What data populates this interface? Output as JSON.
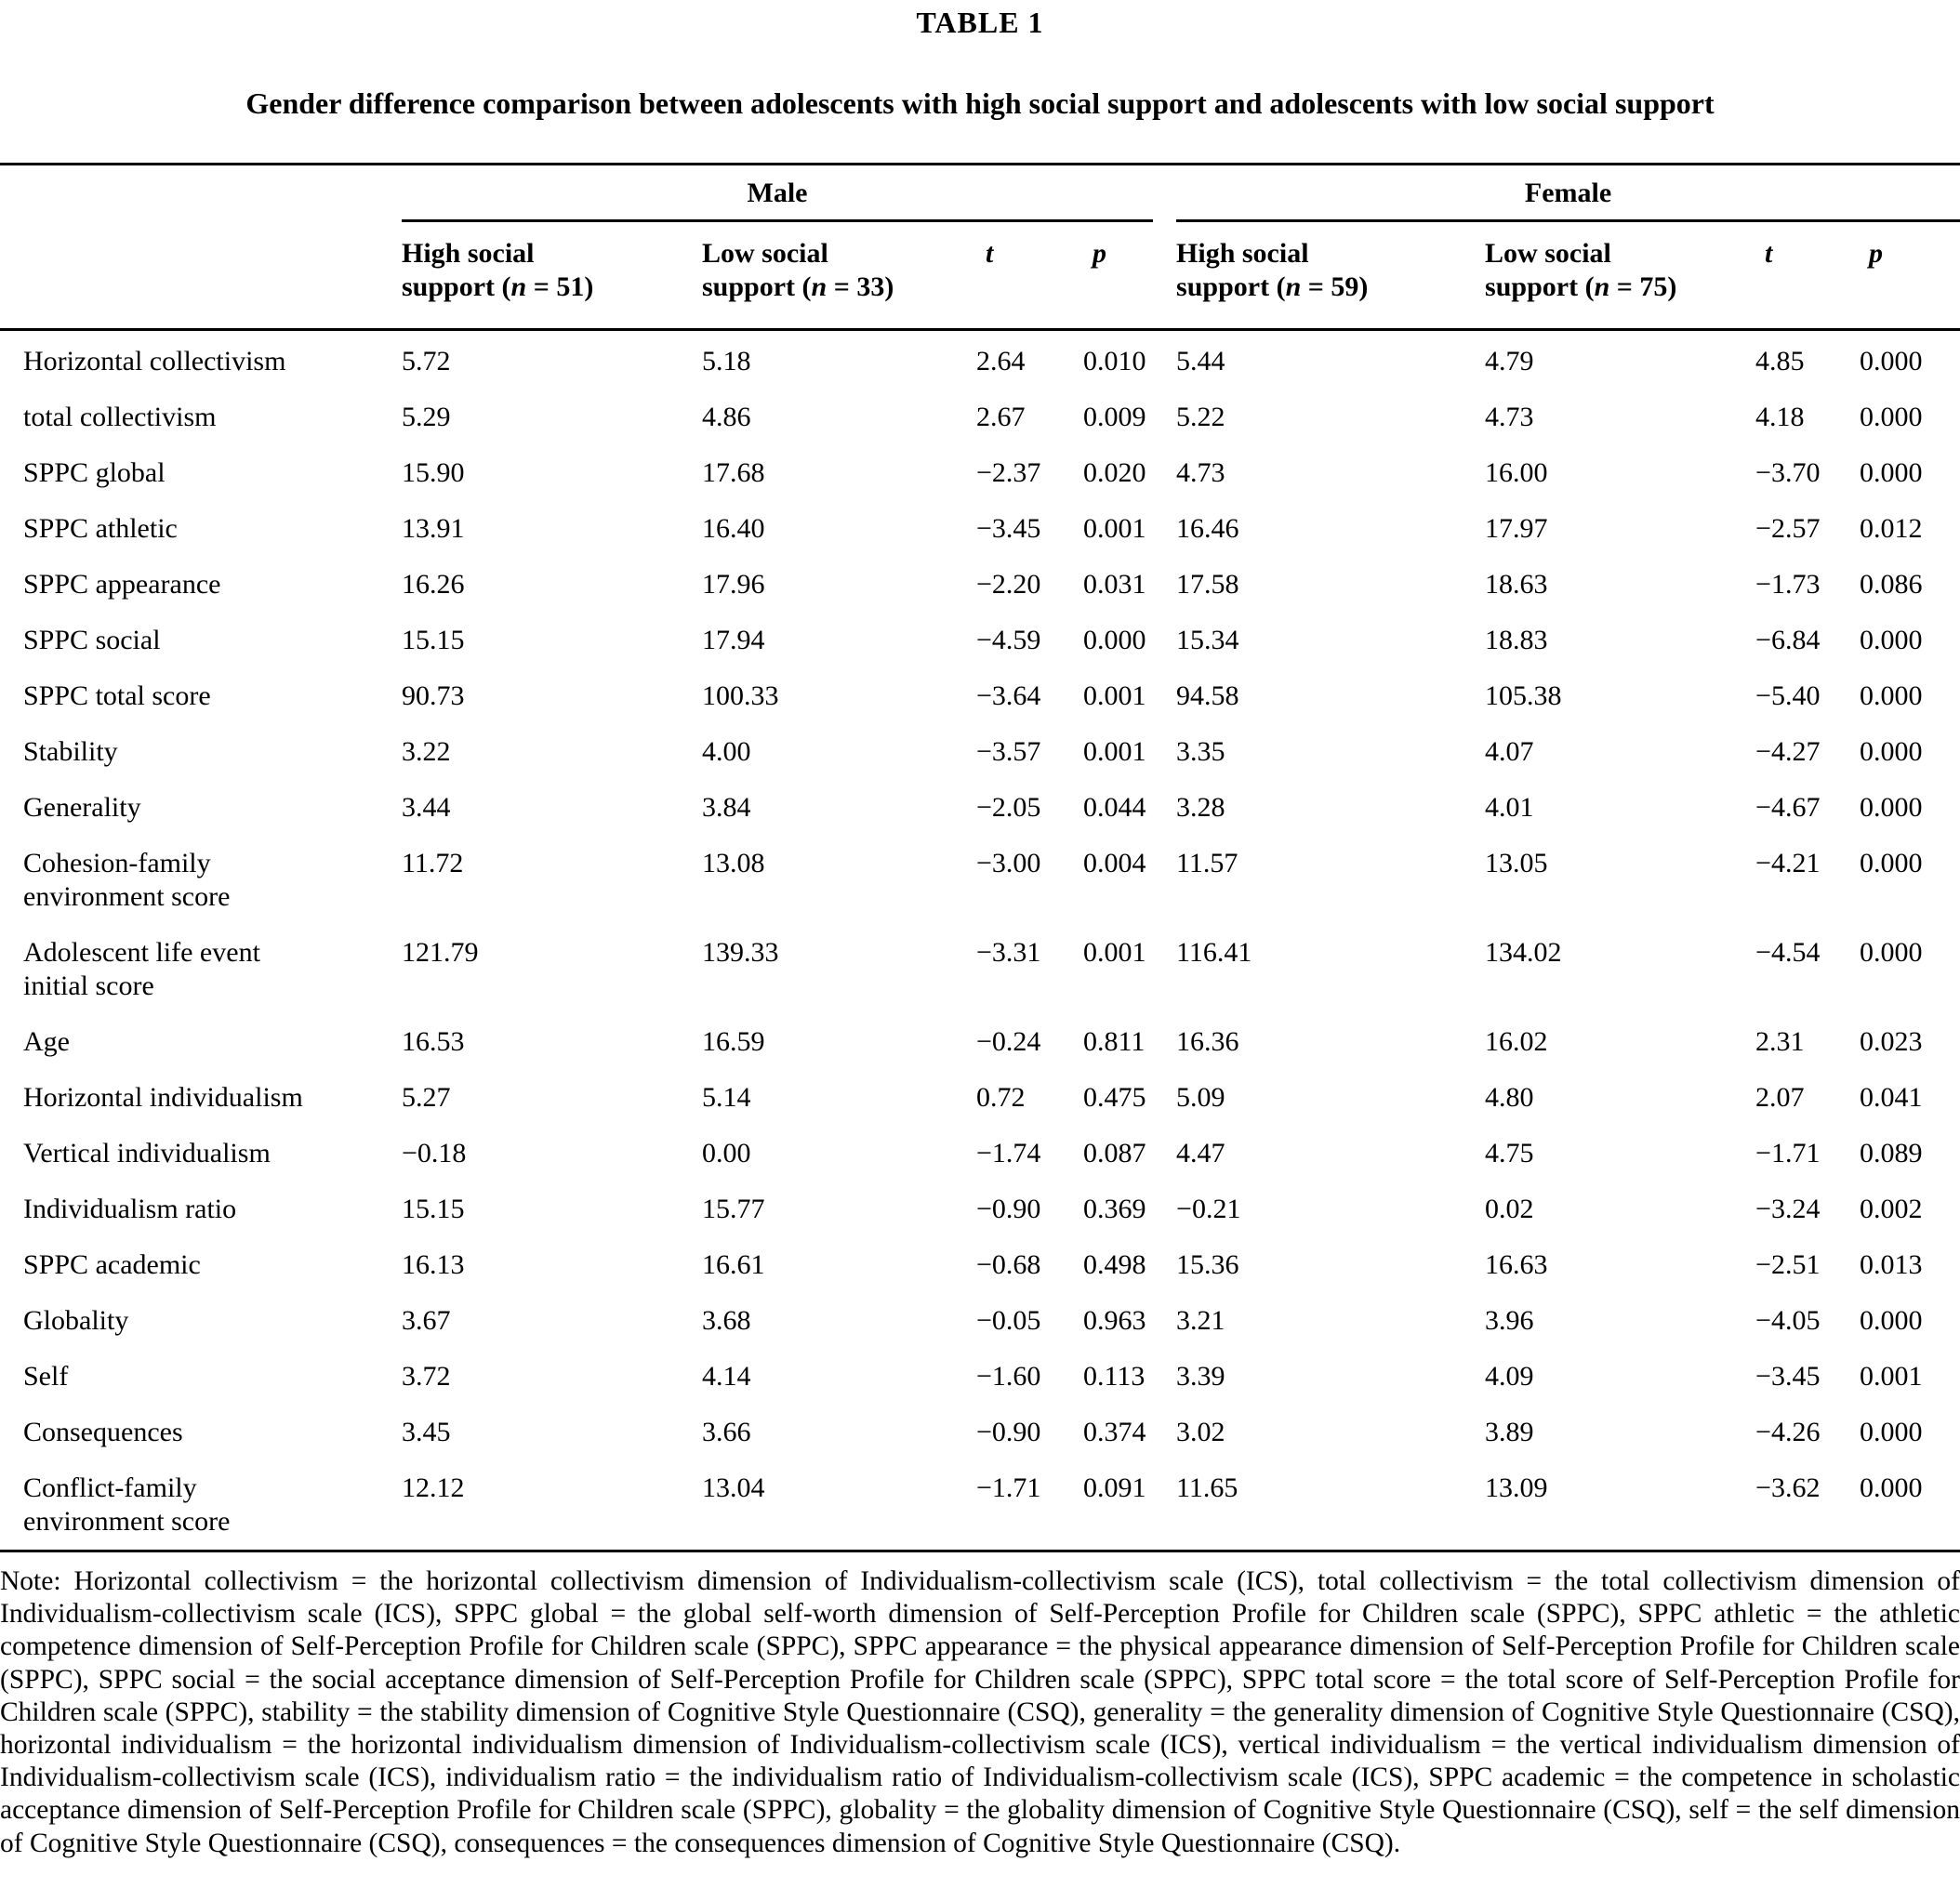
{
  "table_label": "TABLE 1",
  "title": "Gender difference comparison between adolescents with high social support and adolescents with low social support",
  "groups": [
    {
      "label": "Male"
    },
    {
      "label": "Female"
    }
  ],
  "columns": {
    "male_high": {
      "line1": "High social",
      "line2_prefix": "support (",
      "n": "n",
      "line2_suffix": " = 51)"
    },
    "male_low": {
      "line1": "Low social",
      "line2_prefix": "support (",
      "n": "n",
      "line2_suffix": " = 33)"
    },
    "male_t": "t",
    "male_p": "p",
    "female_high": {
      "line1": "High social",
      "line2_prefix": "support (",
      "n": "n",
      "line2_suffix": " = 59)"
    },
    "female_low": {
      "line1": "Low social",
      "line2_prefix": "support (",
      "n": "n",
      "line2_suffix": " = 75)"
    },
    "female_t": "t",
    "female_p": "p"
  },
  "rows": [
    {
      "label": "Horizontal collectivism",
      "values": [
        "5.72",
        "5.18",
        "2.64",
        "0.010",
        "5.44",
        "4.79",
        "4.85",
        "0.000"
      ]
    },
    {
      "label": "total collectivism",
      "values": [
        "5.29",
        "4.86",
        "2.67",
        "0.009",
        "5.22",
        "4.73",
        "4.18",
        "0.000"
      ]
    },
    {
      "label": "SPPC global",
      "values": [
        "15.90",
        "17.68",
        "−2.37",
        "0.020",
        "4.73",
        "16.00",
        "−3.70",
        "0.000"
      ]
    },
    {
      "label": "SPPC athletic",
      "values": [
        "13.91",
        "16.40",
        "−3.45",
        "0.001",
        "16.46",
        "17.97",
        "−2.57",
        "0.012"
      ]
    },
    {
      "label": "SPPC appearance",
      "values": [
        "16.26",
        "17.96",
        "−2.20",
        "0.031",
        "17.58",
        "18.63",
        "−1.73",
        "0.086"
      ]
    },
    {
      "label": "SPPC social",
      "values": [
        "15.15",
        "17.94",
        "−4.59",
        "0.000",
        "15.34",
        "18.83",
        "−6.84",
        "0.000"
      ]
    },
    {
      "label": "SPPC total score",
      "values": [
        "90.73",
        "100.33",
        "−3.64",
        "0.001",
        "94.58",
        "105.38",
        "−5.40",
        "0.000"
      ]
    },
    {
      "label": "Stability",
      "values": [
        "3.22",
        "4.00",
        "−3.57",
        "0.001",
        "3.35",
        "4.07",
        "−4.27",
        "0.000"
      ]
    },
    {
      "label": "Generality",
      "values": [
        "3.44",
        "3.84",
        "−2.05",
        "0.044",
        "3.28",
        "4.01",
        "−4.67",
        "0.000"
      ]
    },
    {
      "label": "Cohesion-family\nenvironment score",
      "values": [
        "11.72",
        "13.08",
        "−3.00",
        "0.004",
        "11.57",
        "13.05",
        "−4.21",
        "0.000"
      ]
    },
    {
      "label": "Adolescent life event\ninitial score",
      "values": [
        "121.79",
        "139.33",
        "−3.31",
        "0.001",
        "116.41",
        "134.02",
        "−4.54",
        "0.000"
      ]
    },
    {
      "label": "Age",
      "values": [
        "16.53",
        "16.59",
        "−0.24",
        "0.811",
        "16.36",
        "16.02",
        "2.31",
        "0.023"
      ]
    },
    {
      "label": "Horizontal individualism",
      "values": [
        "5.27",
        "5.14",
        "0.72",
        "0.475",
        "5.09",
        "4.80",
        "2.07",
        "0.041"
      ]
    },
    {
      "label": "Vertical individualism",
      "values": [
        "−0.18",
        "0.00",
        "−1.74",
        "0.087",
        "4.47",
        "4.75",
        "−1.71",
        "0.089"
      ]
    },
    {
      "label": "Individualism ratio",
      "values": [
        "15.15",
        "15.77",
        "−0.90",
        "0.369",
        "−0.21",
        "0.02",
        "−3.24",
        "0.002"
      ]
    },
    {
      "label": "SPPC academic",
      "values": [
        "16.13",
        "16.61",
        "−0.68",
        "0.498",
        "15.36",
        "16.63",
        "−2.51",
        "0.013"
      ]
    },
    {
      "label": "Globality",
      "values": [
        "3.67",
        "3.68",
        "−0.05",
        "0.963",
        "3.21",
        "3.96",
        "−4.05",
        "0.000"
      ]
    },
    {
      "label": "Self",
      "values": [
        "3.72",
        "4.14",
        "−1.60",
        "0.113",
        "3.39",
        "4.09",
        "−3.45",
        "0.001"
      ]
    },
    {
      "label": "Consequences",
      "values": [
        "3.45",
        "3.66",
        "−0.90",
        "0.374",
        "3.02",
        "3.89",
        "−4.26",
        "0.000"
      ]
    },
    {
      "label": "Conflict-family\nenvironment score",
      "values": [
        "12.12",
        "13.04",
        "−1.71",
        "0.091",
        "11.65",
        "13.09",
        "−3.62",
        "0.000"
      ]
    }
  ],
  "note": "Note: Horizontal collectivism = the horizontal collectivism dimension of Individualism-collectivism scale (ICS), total collectivism = the total collectivism dimension of Individualism-collectivism scale (ICS), SPPC global = the global self-worth dimension of Self-Perception Profile for Children scale (SPPC), SPPC athletic = the athletic competence dimension of Self-Perception Profile for Children scale (SPPC), SPPC appearance = the physical appearance dimension of Self-Perception Profile for Children scale (SPPC), SPPC social = the social acceptance dimension of Self-Perception Profile for Children scale (SPPC), SPPC total score = the total score of Self-Perception Profile for Children scale (SPPC), stability = the stability dimension of Cognitive Style Questionnaire (CSQ), generality = the generality dimension of Cognitive Style Questionnaire (CSQ), horizontal individualism = the horizontal individualism dimension of Individualism-collectivism scale (ICS), vertical individualism = the vertical individualism dimension of Individualism-collectivism scale (ICS), individualism ratio = the individualism ratio of Individualism-collectivism scale (ICS), SPPC academic = the competence in scholastic acceptance dimension of Self-Perception Profile for Children scale (SPPC), globality = the globality dimension of Cognitive Style Questionnaire (CSQ), self = the self dimension of Cognitive Style Questionnaire (CSQ), consequences = the consequences dimension of Cognitive Style Questionnaire (CSQ)."
}
